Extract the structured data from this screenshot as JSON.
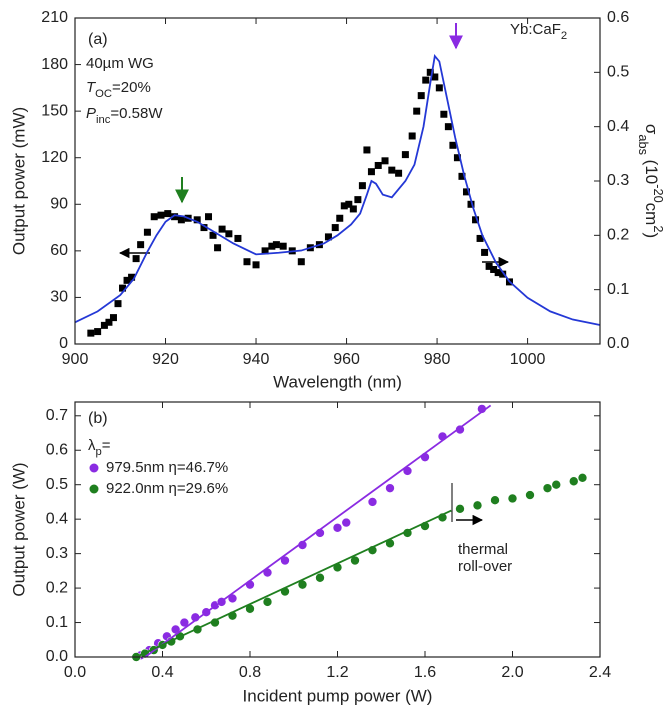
{
  "chart_data": [
    {
      "type": "scatter",
      "title": "(a)",
      "x_label": "Wavelength (nm)",
      "y_label": "Output power (mW)",
      "y2_label": [
        {
          "text": "σ"
        },
        {
          "text": "abs",
          "sub": true
        },
        {
          "text": " (10"
        },
        {
          "text": "-20",
          "sup": true
        },
        {
          "text": "cm"
        },
        {
          "text": "2",
          "sup": true
        },
        {
          "text": ")"
        }
      ],
      "xlim": [
        900,
        1016
      ],
      "xticks": [
        900,
        920,
        940,
        960,
        980,
        1000
      ],
      "ylim": [
        0,
        210
      ],
      "yticks": [
        0,
        30,
        60,
        90,
        120,
        150,
        180,
        210
      ],
      "y2lim": [
        0,
        0.6
      ],
      "y2ticks": [
        {
          "value": 0,
          "label": "0.0"
        },
        0.1,
        0.2,
        0.3,
        0.4,
        0.5,
        0.6
      ],
      "annotations": [
        {
          "parts": [
            {
              "text": "40µm WG"
            }
          ]
        },
        {
          "parts": [
            {
              "text": "T",
              "italic": true
            },
            {
              "text": "OC",
              "sub": true
            },
            {
              "text": "=20%"
            }
          ]
        },
        {
          "parts": [
            {
              "text": "P",
              "italic": true
            },
            {
              "text": "inc",
              "sub": true
            },
            {
              "text": "=0.58W"
            }
          ]
        },
        {
          "parts": [
            {
              "text": "Yb:CaF"
            },
            {
              "text": "2",
              "sub": true
            }
          ]
        }
      ],
      "series": [
        {
          "mode": "markers",
          "marker": "square",
          "color": "#000000",
          "x": [
            903.5,
            905,
            906.5,
            907.5,
            908.5,
            909.5,
            910.5,
            911.5,
            912.5,
            913.5,
            914.5,
            916,
            917.5,
            919,
            920.5,
            922,
            923.5,
            925,
            927,
            928.5,
            929.5,
            930.5,
            931.5,
            932.5,
            934,
            936,
            938,
            940,
            942,
            943.5,
            944.5,
            946,
            948,
            950,
            952,
            954,
            956,
            957.5,
            958.5,
            959.5,
            960.5,
            961.5,
            962.5,
            963.5,
            964.5,
            965.5,
            967,
            968.5,
            970,
            971.5,
            973,
            974.5,
            975.5,
            976.5,
            977.5,
            978.5,
            979.5,
            980.5,
            981.5,
            982.5,
            983.5,
            984.5,
            985.5,
            986.5,
            987.5,
            988.5,
            989.5,
            990.5,
            991.5,
            992.5,
            993.5,
            994.5,
            996
          ],
          "values": [
            7,
            8,
            12,
            14,
            17,
            26,
            36,
            41,
            43,
            55,
            64,
            72,
            82,
            83,
            84,
            82,
            80,
            81,
            80,
            75,
            82,
            70,
            62,
            74,
            71,
            68,
            53,
            51,
            60,
            63,
            64,
            63,
            60,
            53,
            62,
            64,
            69,
            75,
            81,
            89,
            90,
            87,
            93,
            102,
            125,
            111,
            115,
            118,
            112,
            110,
            122,
            134,
            150,
            160,
            170,
            175,
            172,
            165,
            148,
            140,
            128,
            120,
            108,
            98,
            90,
            80,
            68,
            59,
            50,
            48,
            46,
            45,
            40
          ]
        },
        {
          "mode": "line",
          "axis": "y2",
          "color": "#2438d6",
          "x": [
            900,
            905,
            910,
            913,
            916,
            918,
            920,
            922,
            924,
            927,
            930,
            935,
            940,
            945,
            950,
            955,
            958,
            961,
            963,
            964.5,
            965.5,
            966.5,
            968,
            970,
            973,
            975,
            977,
            978.5,
            979.5,
            980.5,
            982,
            984,
            986,
            988,
            990,
            993,
            996,
            1000,
            1005,
            1010,
            1016
          ],
          "values": [
            0.04,
            0.06,
            0.09,
            0.12,
            0.17,
            0.2,
            0.225,
            0.237,
            0.235,
            0.225,
            0.21,
            0.185,
            0.165,
            0.168,
            0.172,
            0.185,
            0.2,
            0.22,
            0.24,
            0.275,
            0.3,
            0.295,
            0.275,
            0.27,
            0.3,
            0.33,
            0.4,
            0.48,
            0.53,
            0.52,
            0.46,
            0.38,
            0.31,
            0.25,
            0.2,
            0.15,
            0.115,
            0.085,
            0.06,
            0.045,
            0.035
          ]
        }
      ]
    },
    {
      "type": "scatter",
      "title": "(b)",
      "x_label": "Incident pump power (W)",
      "y_label": "Output power (W)",
      "xlim": [
        0,
        2.4
      ],
      "xticks": [
        {
          "value": 0,
          "label": "0.0"
        },
        0.4,
        0.8,
        1.2,
        1.6,
        {
          "value": 2,
          "label": "2.0"
        },
        2.4
      ],
      "ylim": [
        0,
        0.74
      ],
      "yticks": [
        {
          "value": 0,
          "label": "0.0"
        },
        0.1,
        0.2,
        0.3,
        0.4,
        0.5,
        0.6,
        0.7
      ],
      "legend_title": [
        {
          "text": "λ"
        },
        {
          "text": "p",
          "sub": true
        },
        {
          "text": "="
        }
      ],
      "annotations": [
        {
          "parts": [
            {
              "text": "thermal"
            }
          ]
        },
        {
          "parts": [
            {
              "text": "roll-over"
            }
          ]
        }
      ],
      "series": [
        {
          "name": "979.5nm η=46.7%",
          "mode": "markers",
          "marker": "circle",
          "color": "#8a2be2",
          "x": [
            0.3,
            0.34,
            0.38,
            0.42,
            0.46,
            0.5,
            0.55,
            0.6,
            0.64,
            0.67,
            0.72,
            0.8,
            0.88,
            0.96,
            1.04,
            1.12,
            1.2,
            1.24,
            1.36,
            1.44,
            1.52,
            1.6,
            1.68,
            1.76,
            1.86
          ],
          "values": [
            0.005,
            0.02,
            0.04,
            0.06,
            0.08,
            0.1,
            0.115,
            0.13,
            0.15,
            0.16,
            0.17,
            0.21,
            0.245,
            0.28,
            0.325,
            0.36,
            0.375,
            0.39,
            0.45,
            0.49,
            0.54,
            0.58,
            0.64,
            0.66,
            0.72
          ]
        },
        {
          "name": "922.0nm η=29.6%",
          "mode": "markers",
          "marker": "circle",
          "color": "#1f7f1f",
          "x": [
            0.28,
            0.32,
            0.36,
            0.4,
            0.44,
            0.48,
            0.56,
            0.64,
            0.72,
            0.8,
            0.88,
            0.96,
            1.04,
            1.12,
            1.2,
            1.28,
            1.36,
            1.44,
            1.52,
            1.6,
            1.68,
            1.76,
            1.84,
            1.92,
            2.0,
            2.08,
            2.16,
            2.2,
            2.28,
            2.32
          ],
          "values": [
            0,
            0.01,
            0.02,
            0.035,
            0.045,
            0.06,
            0.08,
            0.1,
            0.12,
            0.14,
            0.16,
            0.19,
            0.21,
            0.23,
            0.26,
            0.28,
            0.31,
            0.33,
            0.36,
            0.38,
            0.405,
            0.43,
            0.44,
            0.455,
            0.46,
            0.47,
            0.49,
            0.5,
            0.51,
            0.52
          ]
        },
        {
          "mode": "line",
          "color": "#8a2be2",
          "x": [
            0.32,
            1.9
          ],
          "values": [
            0,
            0.73
          ]
        },
        {
          "mode": "line",
          "color": "#1f7f1f",
          "x": [
            0.28,
            1.72
          ],
          "values": [
            0,
            0.425
          ]
        }
      ]
    }
  ]
}
